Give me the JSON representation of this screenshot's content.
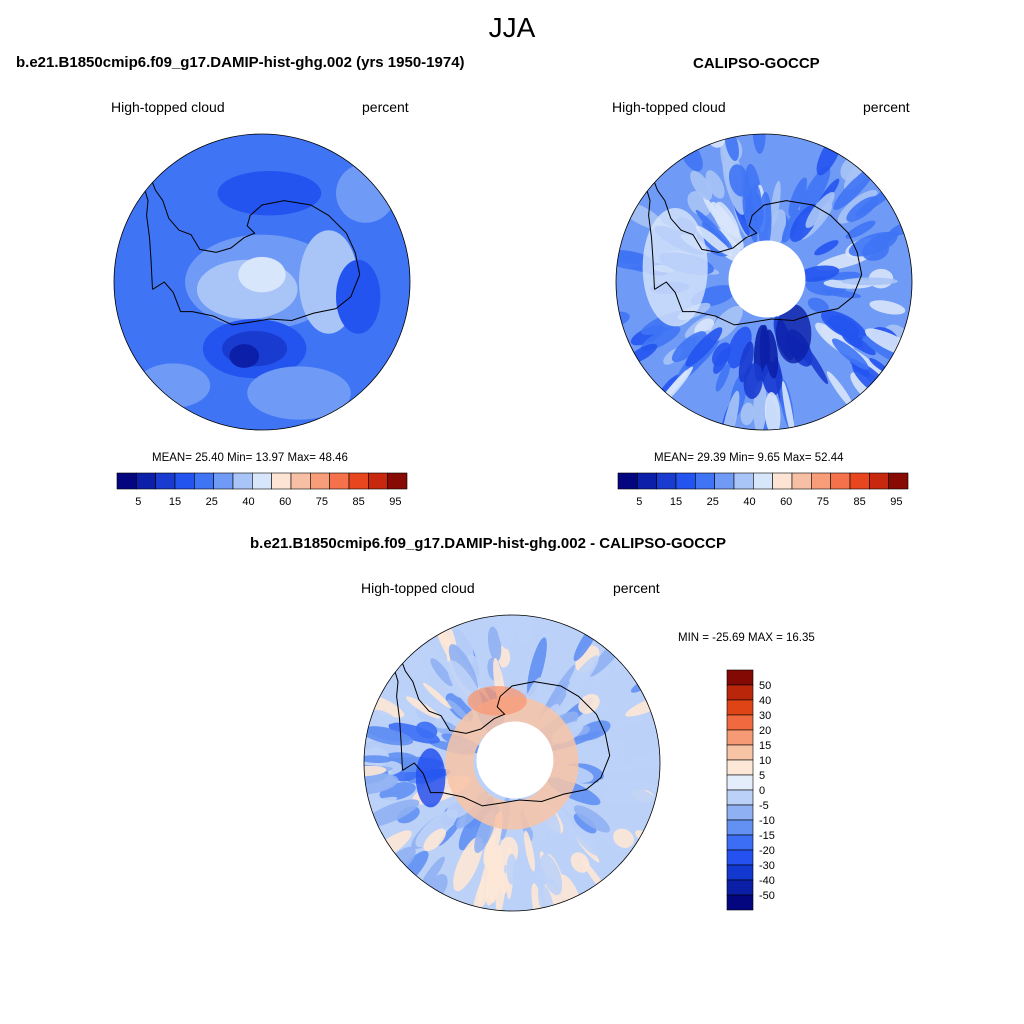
{
  "figure": {
    "title": "JJA"
  },
  "colors": {
    "seq": [
      "#03067e",
      "#0b1fa8",
      "#1a3bd0",
      "#2454f0",
      "#3f74f5",
      "#6f9af5",
      "#a9c4f6",
      "#d8e6fb",
      "#fde4d4",
      "#f7c0a4",
      "#f79d79",
      "#f4714b",
      "#e8461e",
      "#c8280e",
      "#870a05"
    ],
    "diff": [
      "#03067e",
      "#0a1fa6",
      "#1238cf",
      "#2451ef",
      "#3b6ef5",
      "#6290f3",
      "#8fb0f3",
      "#bcd1f7",
      "#e4eefb",
      "#fde7d6",
      "#f8c4a6",
      "#f69a75",
      "#f16a3f",
      "#df4417",
      "#b9260a",
      "#830a04"
    ],
    "coast": "#000000",
    "land_mask": "#ffffff"
  },
  "chart_data": [
    {
      "type": "heatmap",
      "title": "b.e21.B1850cmip6.f09_g17.DAMIP-hist-ghg.002 (yrs 1950-1974)",
      "variable": "High-topped cloud",
      "units": "percent",
      "stats_text": "MEAN=  25.40  Min=  13.97  Max=  48.46",
      "mean": 25.4,
      "min": 13.97,
      "max": 48.46,
      "projection": "south-polar-stereographic",
      "colorbar": {
        "orientation": "horizontal",
        "levels": [
          5,
          15,
          25,
          40,
          60,
          75,
          85,
          95
        ]
      }
    },
    {
      "type": "heatmap",
      "title": "CALIPSO-GOCCP",
      "variable": "High-topped cloud",
      "units": "percent",
      "stats_text": "MEAN=  29.39  Min=   9.65  Max=  52.44",
      "mean": 29.39,
      "min": 9.65,
      "max": 52.44,
      "projection": "south-polar-stereographic",
      "polar_hole": true,
      "colorbar": {
        "orientation": "horizontal",
        "levels": [
          5,
          15,
          25,
          40,
          60,
          75,
          85,
          95
        ]
      }
    },
    {
      "type": "heatmap",
      "title": "b.e21.B1850cmip6.f09_g17.DAMIP-hist-ghg.002 - CALIPSO-GOCCP",
      "variable": "High-topped cloud",
      "units": "percent",
      "stats_text": "MIN = -25.69 MAX =  16.35",
      "min": -25.69,
      "max": 16.35,
      "projection": "south-polar-stereographic",
      "polar_hole": true,
      "colorbar": {
        "orientation": "vertical",
        "levels": [
          50,
          40,
          30,
          20,
          15,
          10,
          5,
          0,
          -5,
          -10,
          -15,
          -20,
          -30,
          -40,
          -50
        ]
      }
    }
  ]
}
